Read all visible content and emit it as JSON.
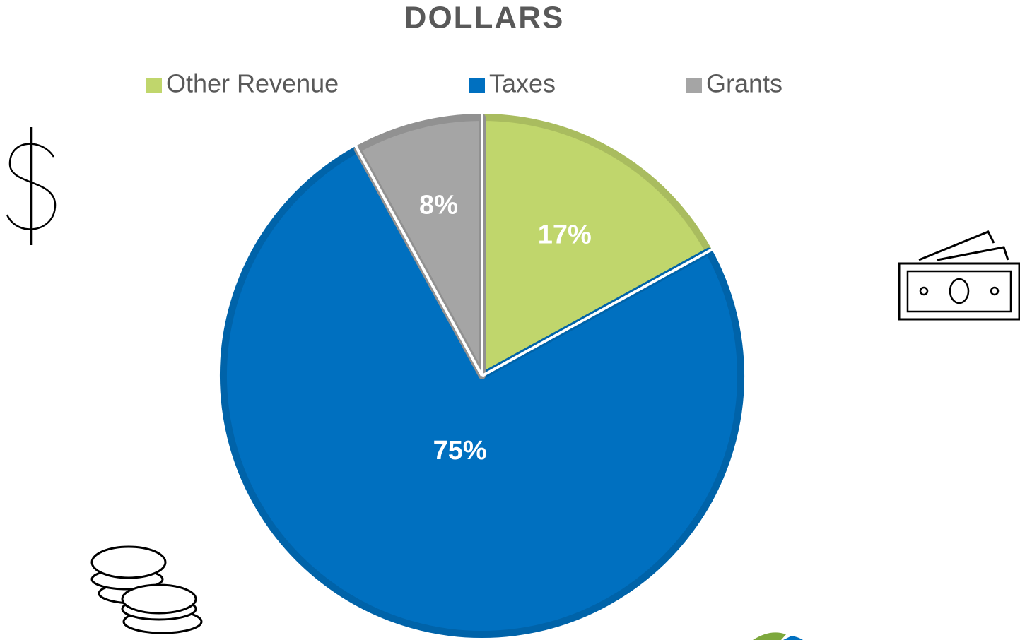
{
  "chart_data": {
    "type": "pie",
    "title": "DOLLARS",
    "categories": [
      "Other Revenue",
      "Taxes",
      "Grants"
    ],
    "values": [
      17,
      75,
      8
    ],
    "value_labels": [
      "17%",
      "75%",
      "8%"
    ],
    "colors": [
      "#c0d66c",
      "#0070c0",
      "#a5a5a5"
    ],
    "legend": "top"
  }
}
